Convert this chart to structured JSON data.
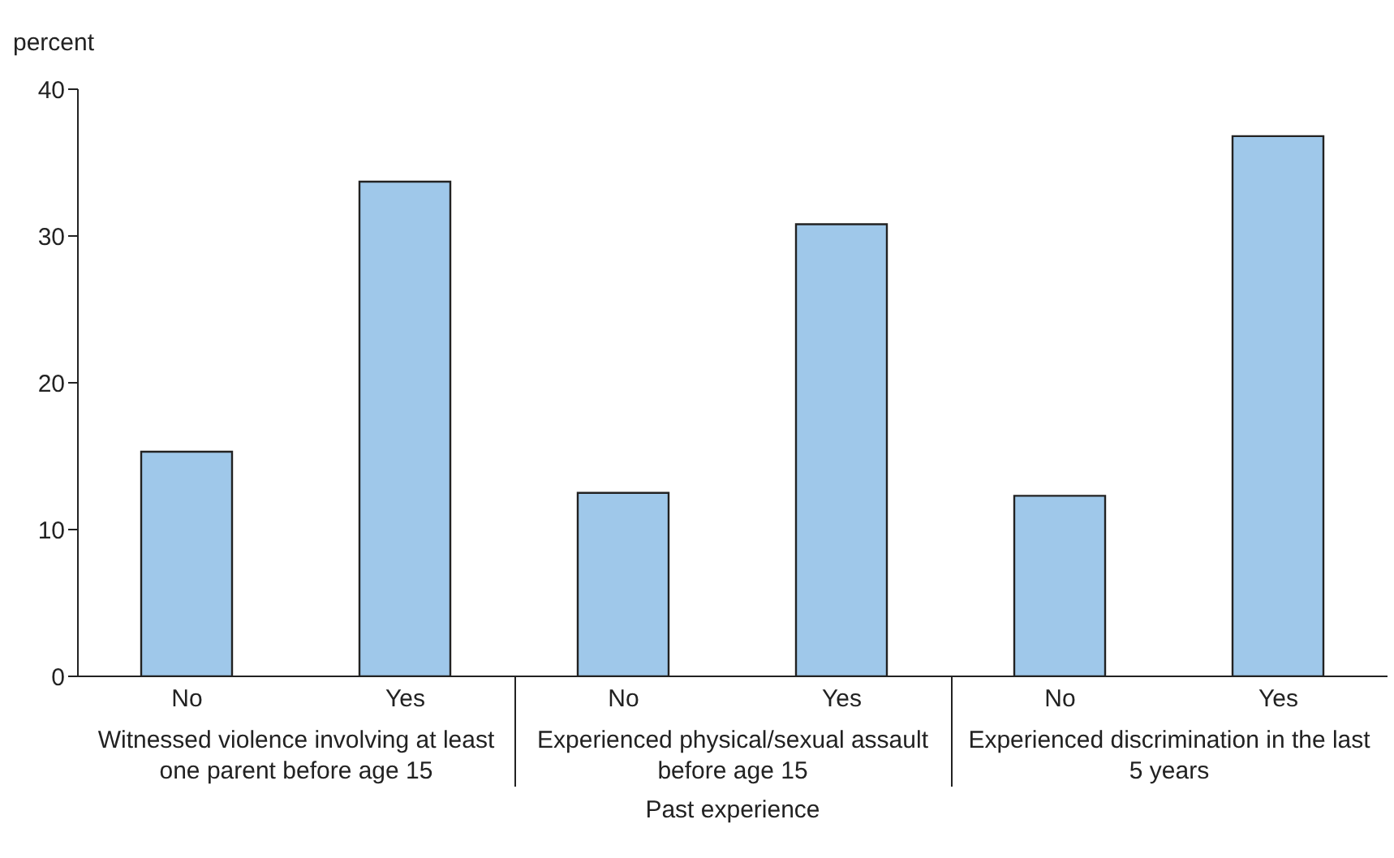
{
  "chart_data": {
    "type": "bar",
    "ylabel": "percent",
    "xlabel": "Past experience",
    "categories": [
      "No",
      "Yes",
      "No",
      "Yes",
      "No",
      "Yes"
    ],
    "values": [
      15.3,
      33.7,
      12.5,
      30.8,
      12.3,
      36.8
    ],
    "color": "#9fc8ea",
    "annotations": [
      "Witnessed violence involving at least one parent before age 15",
      "Experienced physical/sexual assault before age 15",
      "Experienced discrimination in the last 5 years"
    ],
    "ylim": [
      0,
      40
    ],
    "yticks": [
      0,
      10,
      20,
      30,
      40
    ],
    "grid": false,
    "legend": false
  }
}
